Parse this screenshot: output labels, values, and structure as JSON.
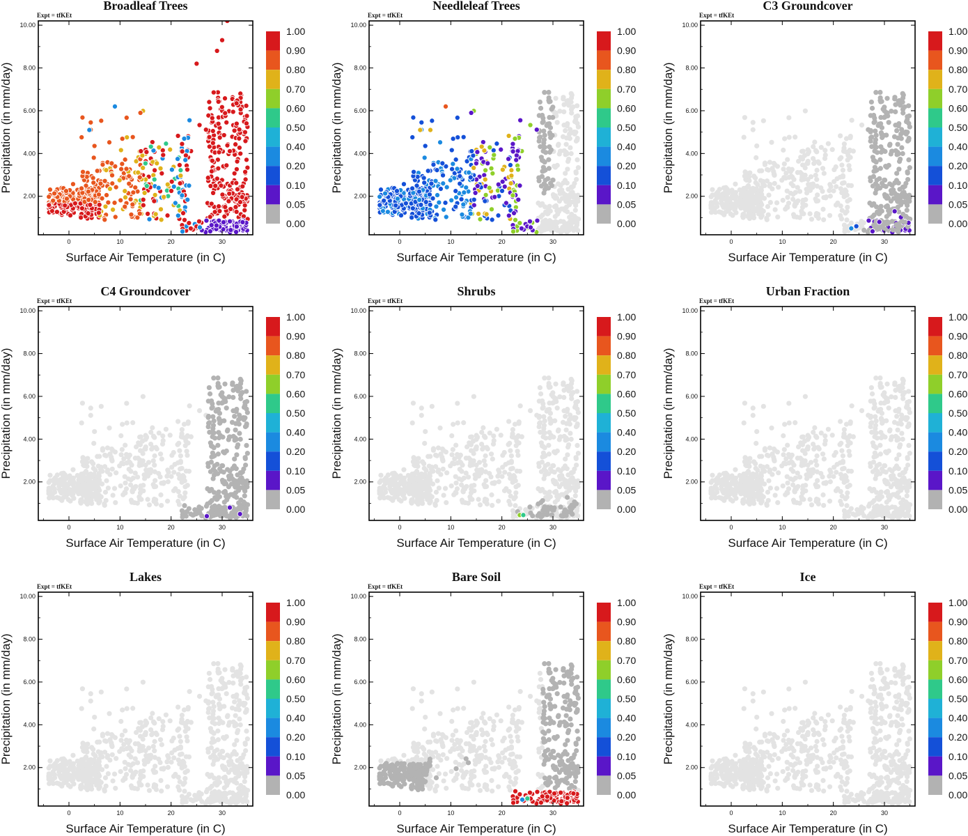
{
  "figure": {
    "expt_label": "Expt = tfKEt",
    "xlabel": "Surface Air Temperature (in C)",
    "ylabel": "Precipitation (in mm/day)"
  },
  "colorbar": {
    "labels": [
      "1.00",
      "0.90",
      "0.80",
      "0.70",
      "0.60",
      "0.50",
      "0.40",
      "0.20",
      "0.10",
      "0.05",
      "0.00"
    ],
    "colors": [
      "#d7191c",
      "#e8561e",
      "#e0b21a",
      "#8fcf2a",
      "#2fc98a",
      "#1fb1d6",
      "#1b8ae0",
      "#1450d8",
      "#5a16c8",
      "#b2b2b2"
    ]
  },
  "chart_data": [
    {
      "type": "scatter",
      "title": "Broadleaf Trees",
      "xlim": [
        -6,
        36
      ],
      "ylim": [
        0.2,
        10.2
      ],
      "xticks": [
        0,
        10,
        20,
        30
      ],
      "yticks": [
        "2.00",
        "4.00",
        "6.00",
        "8.00",
        "10.00"
      ],
      "colorbar_range": [
        0,
        1
      ],
      "pattern": "broadleaf",
      "highlight_points": [
        {
          "x": 31,
          "y": 10.2,
          "v": 0.95
        },
        {
          "x": 30,
          "y": 9.3,
          "v": 0.95
        },
        {
          "x": 29,
          "y": 8.8,
          "v": 0.95
        },
        {
          "x": 25,
          "y": 8.2,
          "v": 0.95
        },
        {
          "x": 9,
          "y": 6.2,
          "v": 0.25
        },
        {
          "x": 14,
          "y": 5.9,
          "v": 0.85
        },
        {
          "x": 4,
          "y": 5.1,
          "v": 0.3
        }
      ]
    },
    {
      "type": "scatter",
      "title": "Needleleaf Trees",
      "xlim": [
        -6,
        36
      ],
      "ylim": [
        0.2,
        10.2
      ],
      "xticks": [
        0,
        10,
        20,
        30
      ],
      "yticks": [
        "2.00",
        "4.00",
        "6.00",
        "8.00",
        "10.00"
      ],
      "colorbar_range": [
        0,
        1
      ],
      "pattern": "needleleaf",
      "highlight_points": [
        {
          "x": 9,
          "y": 6.2,
          "v": 0.85
        },
        {
          "x": 14,
          "y": 5.9,
          "v": 0.07
        },
        {
          "x": 4,
          "y": 5.1,
          "v": 0.75
        },
        {
          "x": 6,
          "y": 5.1,
          "v": 0.75
        }
      ]
    },
    {
      "type": "scatter",
      "title": "C3 Groundcover",
      "xlim": [
        -6,
        36
      ],
      "ylim": [
        0.2,
        10.2
      ],
      "xticks": [
        0,
        10,
        20,
        30
      ],
      "yticks": [
        "2.00",
        "4.00",
        "6.00",
        "8.00",
        "10.00"
      ],
      "colorbar_range": [
        0,
        1
      ],
      "pattern": "c3",
      "highlight_points": [
        {
          "x": 23.5,
          "y": 0.5,
          "v": 0.3
        },
        {
          "x": 24.5,
          "y": 0.6,
          "v": 0.15
        },
        {
          "x": 29,
          "y": 0.8,
          "v": 0.07
        },
        {
          "x": 32,
          "y": 1.3,
          "v": 0.07
        }
      ]
    },
    {
      "type": "scatter",
      "title": "C4 Groundcover",
      "xlim": [
        -6,
        36
      ],
      "ylim": [
        0.2,
        10.2
      ],
      "xticks": [
        0,
        10,
        20,
        30
      ],
      "yticks": [
        "2.00",
        "4.00",
        "6.00",
        "8.00",
        "10.00"
      ],
      "colorbar_range": [
        0,
        1
      ],
      "pattern": "c4",
      "highlight_points": [
        {
          "x": 27,
          "y": 0.4,
          "v": 0.07
        },
        {
          "x": 31.5,
          "y": 0.8,
          "v": 0.07
        },
        {
          "x": 33.5,
          "y": 0.5,
          "v": 0.07
        }
      ]
    },
    {
      "type": "scatter",
      "title": "Shrubs",
      "xlim": [
        -6,
        36
      ],
      "ylim": [
        0.2,
        10.2
      ],
      "xticks": [
        0,
        10,
        20,
        30
      ],
      "yticks": [
        "2.00",
        "4.00",
        "6.00",
        "8.00",
        "10.00"
      ],
      "colorbar_range": [
        0,
        1
      ],
      "pattern": "shrubs",
      "highlight_points": [
        {
          "x": 23.5,
          "y": 0.45,
          "v": 0.65
        },
        {
          "x": 24.2,
          "y": 0.45,
          "v": 0.55
        }
      ]
    },
    {
      "type": "scatter",
      "title": "Urban Fraction",
      "xlim": [
        -6,
        36
      ],
      "ylim": [
        0.2,
        10.2
      ],
      "xticks": [
        0,
        10,
        20,
        30
      ],
      "yticks": [
        "2.00",
        "4.00",
        "6.00",
        "8.00",
        "10.00"
      ],
      "colorbar_range": [
        0,
        1
      ],
      "pattern": "none",
      "highlight_points": []
    },
    {
      "type": "scatter",
      "title": "Lakes",
      "xlim": [
        -6,
        36
      ],
      "ylim": [
        0.2,
        10.2
      ],
      "xticks": [
        0,
        10,
        20,
        30
      ],
      "yticks": [
        "2.00",
        "4.00",
        "6.00",
        "8.00",
        "10.00"
      ],
      "colorbar_range": [
        0,
        1
      ],
      "pattern": "none",
      "highlight_points": []
    },
    {
      "type": "scatter",
      "title": "Bare Soil",
      "xlim": [
        -6,
        36
      ],
      "ylim": [
        0.2,
        10.2
      ],
      "xticks": [
        0,
        10,
        20,
        30
      ],
      "yticks": [
        "2.00",
        "4.00",
        "6.00",
        "8.00",
        "10.00"
      ],
      "colorbar_range": [
        0,
        1
      ],
      "pattern": "baresoil",
      "highlight_points": [
        {
          "x": 24,
          "y": 0.5,
          "v": 0.2
        },
        {
          "x": 25,
          "y": 0.55,
          "v": 0.5
        }
      ]
    },
    {
      "type": "scatter",
      "title": "Ice",
      "xlim": [
        -6,
        36
      ],
      "ylim": [
        0.2,
        10.2
      ],
      "xticks": [
        0,
        10,
        20,
        30
      ],
      "yticks": [
        "2.00",
        "4.00",
        "6.00",
        "8.00",
        "10.00"
      ],
      "colorbar_range": [
        0,
        1
      ],
      "pattern": "none",
      "highlight_points": []
    }
  ]
}
